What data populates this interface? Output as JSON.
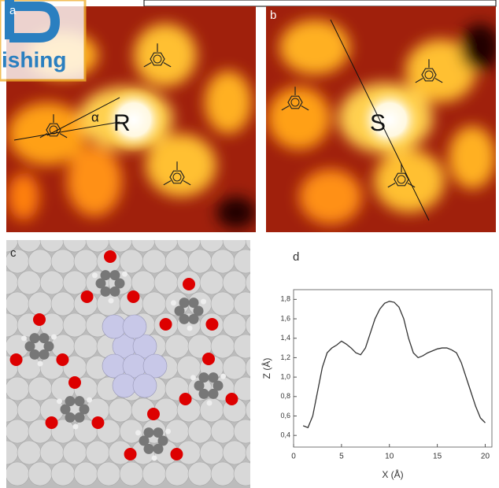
{
  "logo": {
    "text": "ishing"
  },
  "stm_a": {
    "label": "a",
    "handedness": "R",
    "angle": "α"
  },
  "stm_b": {
    "label": "b",
    "handedness": "S"
  },
  "model_c": {
    "label": "c"
  },
  "chart_data": {
    "type": "line",
    "panel_label": "d",
    "xlabel": "X (Å)",
    "ylabel": "Z (Å)",
    "x": [
      1,
      1.5,
      2,
      2.5,
      3,
      3.5,
      4,
      4.5,
      5,
      5.5,
      6,
      6.5,
      7,
      7.5,
      8,
      8.5,
      9,
      9.5,
      10,
      10.5,
      11,
      11.5,
      12,
      12.5,
      13,
      13.5,
      14,
      14.5,
      15,
      15.5,
      16,
      16.5,
      17,
      17.5,
      18,
      18.5,
      19,
      19.5,
      20
    ],
    "values": [
      0.5,
      0.48,
      0.6,
      0.85,
      1.1,
      1.25,
      1.3,
      1.33,
      1.37,
      1.34,
      1.3,
      1.25,
      1.23,
      1.3,
      1.45,
      1.6,
      1.7,
      1.76,
      1.78,
      1.77,
      1.72,
      1.6,
      1.4,
      1.25,
      1.2,
      1.22,
      1.25,
      1.27,
      1.29,
      1.3,
      1.3,
      1.28,
      1.25,
      1.15,
      1.0,
      0.85,
      0.7,
      0.58,
      0.53
    ],
    "color": "#333333",
    "xlim": [
      0,
      20.7
    ],
    "ylim": [
      0.28,
      1.9
    ],
    "xticks": [
      0,
      5,
      10,
      15,
      20
    ],
    "yticks": [
      {
        "value": 0.4,
        "label": "0,4"
      },
      {
        "value": 0.6,
        "label": "0,6"
      },
      {
        "value": 0.8,
        "label": "0,8"
      },
      {
        "value": 1.0,
        "label": "1,0"
      },
      {
        "value": 1.2,
        "label": "1,2"
      },
      {
        "value": 1.4,
        "label": "1,4"
      },
      {
        "value": 1.6,
        "label": "1,6"
      },
      {
        "value": 1.8,
        "label": "1,8"
      }
    ]
  }
}
